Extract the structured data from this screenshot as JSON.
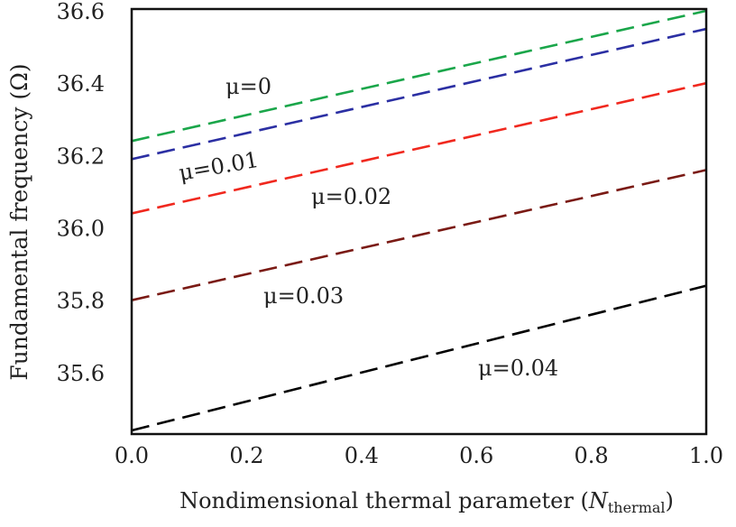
{
  "chart_data": {
    "type": "line",
    "title": "",
    "xlabel": "Nondimensional thermal parameter (",
    "xlabel_var": "N",
    "xlabel_sub": "thermal",
    "xlabel_close": ")",
    "ylabel": "Fundamental frequency (Ω)",
    "xlim": [
      0,
      1
    ],
    "ylim": [
      35.43,
      36.605
    ],
    "grid": false,
    "x_ticks": [
      "0.0",
      "0.2",
      "0.4",
      "0.6",
      "0.8",
      "1.0"
    ],
    "y_ticks": [
      "35.6",
      "35.8",
      "36.0",
      "36.2",
      "36.4",
      "36.6"
    ],
    "x": [
      0,
      1
    ],
    "series": [
      {
        "name": "μ=0",
        "color": "#1aa64a",
        "values": [
          36.24,
          36.6
        ]
      },
      {
        "name": "μ=0.01",
        "color": "#2b2fa3",
        "values": [
          36.19,
          36.55
        ]
      },
      {
        "name": "μ=0.02",
        "color": "#f0281e",
        "values": [
          36.04,
          36.4
        ]
      },
      {
        "name": "μ=0.03",
        "color": "#7a1a14",
        "values": [
          35.8,
          36.16
        ]
      },
      {
        "name": "μ=0.04",
        "color": "#000000",
        "values": [
          35.44,
          35.84
        ]
      }
    ]
  }
}
